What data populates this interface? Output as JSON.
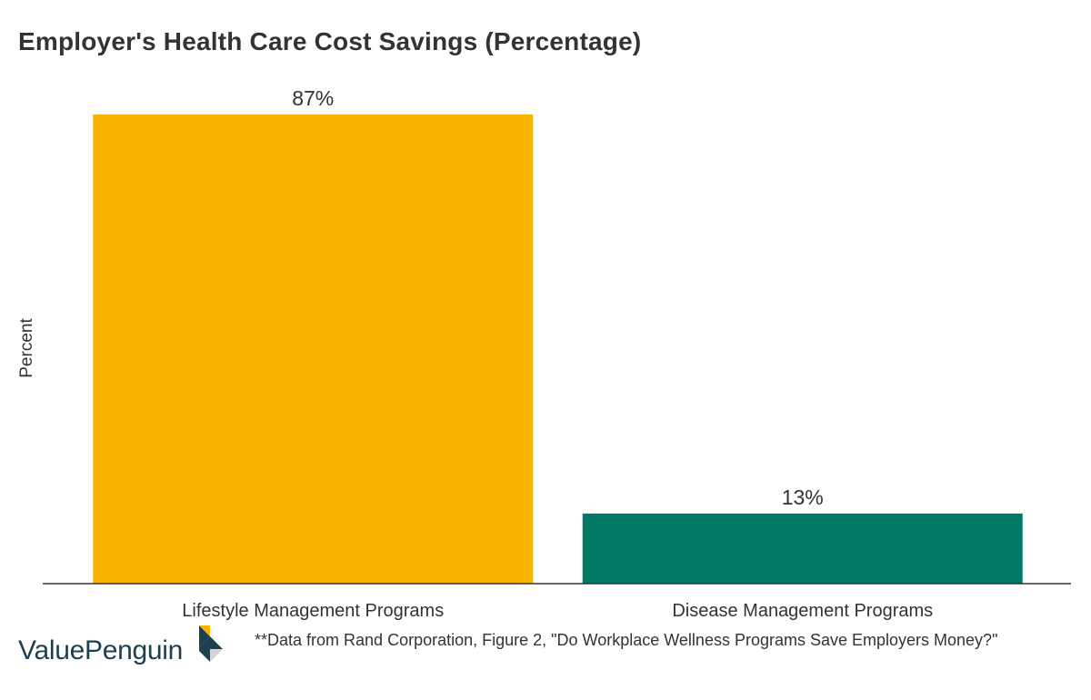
{
  "title": "Employer's Health Care Cost Savings (Percentage)",
  "source_note": "**Data from Rand Corporation, Figure 2, \"Do Workplace Wellness Programs Save Employers Money?\"",
  "logo": {
    "text": "ValuePenguin",
    "icon": "valuepenguin-logo-icon"
  },
  "colors": {
    "lifestyle": "#F8B300",
    "disease": "#007A66",
    "axis": "#333333"
  },
  "chart_data": {
    "type": "bar",
    "categories": [
      "Lifestyle Management Programs",
      "Disease Management Programs"
    ],
    "values": [
      87,
      13
    ],
    "value_labels": [
      "87%",
      "13%"
    ],
    "title": "Employer's Health Care Cost Savings (Percentage)",
    "xlabel": "",
    "ylabel": "Percent",
    "ylim": [
      0,
      87
    ],
    "grid": false,
    "legend": "none"
  }
}
